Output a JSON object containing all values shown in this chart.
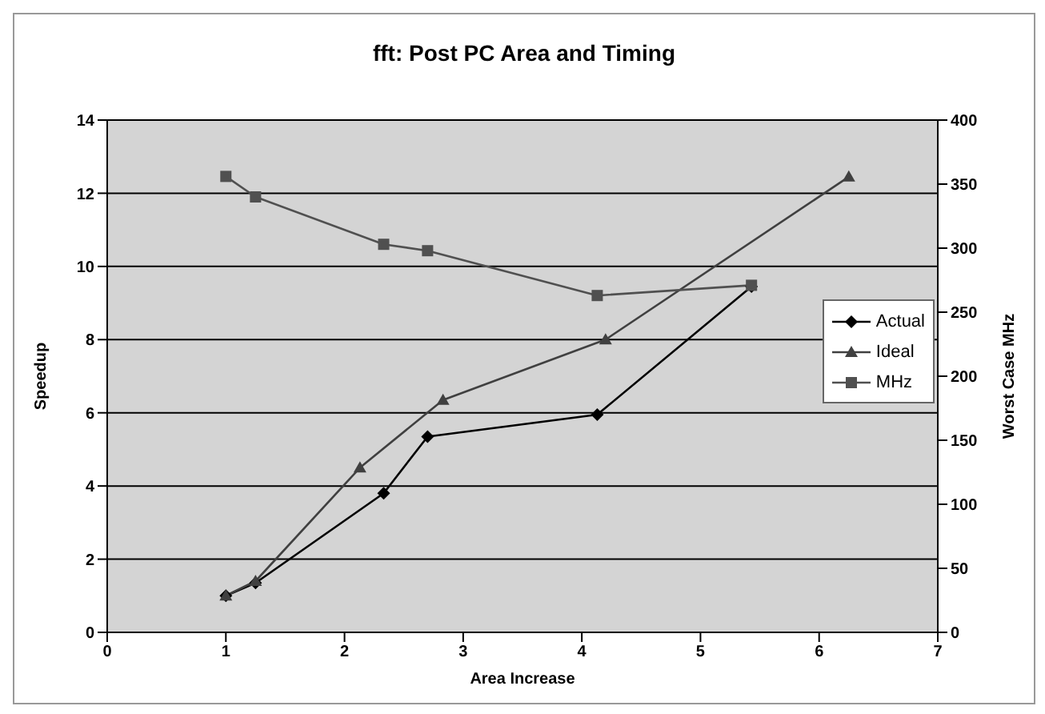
{
  "chart_data": {
    "type": "line",
    "title": "fft: Post PC Area and Timing",
    "xlabel": "Area Increase",
    "ylabel": "Speedup",
    "y2label": "Worst Case MHz",
    "series": [
      {
        "name": "Actual",
        "color": "#000000",
        "marker": "diamond",
        "x": [
          1,
          1.25,
          2.33,
          2.7,
          4.13,
          5.43
        ],
        "values": [
          1,
          1.35,
          3.8,
          5.35,
          5.95,
          9.45
        ]
      },
      {
        "name": "Ideal",
        "color": "#404040",
        "marker": "triangle",
        "x": [
          1,
          1.25,
          2.13,
          2.83,
          4.2,
          6.25
        ],
        "values": [
          1,
          1.4,
          4.5,
          6.35,
          8.0,
          12.45
        ]
      },
      {
        "name": "MHz",
        "color": "#505050",
        "marker": "square",
        "axis": "y2",
        "x": [
          1,
          1.25,
          2.33,
          2.7,
          4.13,
          5.43
        ],
        "values": [
          356,
          340,
          303,
          298,
          263,
          271
        ]
      }
    ],
    "xlim": [
      0,
      7
    ],
    "xticks": [
      0,
      1,
      2,
      3,
      4,
      5,
      6,
      7
    ],
    "ylim": [
      0,
      14
    ],
    "yticks": [
      0,
      2,
      4,
      6,
      8,
      10,
      12,
      14
    ],
    "y2lim": [
      0,
      400
    ],
    "y2ticks": [
      0,
      50,
      100,
      150,
      200,
      250,
      300,
      350,
      400
    ],
    "grid": "y",
    "legend": "right"
  }
}
